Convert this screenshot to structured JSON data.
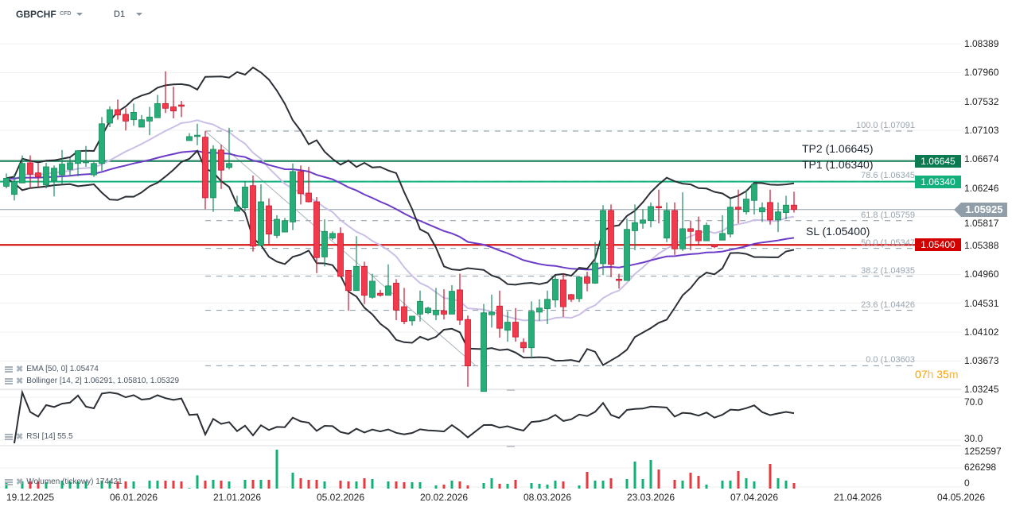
{
  "header": {
    "symbol": "GBPCHF",
    "instrument_type": "CFD",
    "timeframe": "D1"
  },
  "colors": {
    "up": "#26ad78",
    "up_border": "#1a8a5c",
    "down": "#f23a4d",
    "down_border": "#c8182f",
    "tp2": "#0b7a50",
    "tp1": "#12b07c",
    "sl": "#d40000",
    "current": "#8f9ea8",
    "bb_outer": "#2b2f36",
    "bb_mid": "#cbbfe6",
    "ema": "#6c3cc8",
    "fib": "#8a98a3",
    "rsi": "#2b2f36"
  },
  "price_axis": {
    "ticks": [
      "1.08389",
      "1.07960",
      "1.07532",
      "1.07103",
      "1.06674",
      "1.06246",
      "1.05817",
      "1.05388",
      "1.04960",
      "1.04531",
      "1.04102",
      "1.03673",
      "1.03245"
    ]
  },
  "x_axis": {
    "ticks": [
      "19.12.2025",
      "06.01.2026",
      "21.01.2026",
      "05.02.2026",
      "20.02.2026",
      "08.03.2026",
      "23.03.2026",
      "07.04.2026",
      "21.04.2026",
      "04.05.2026"
    ]
  },
  "levels": {
    "tp2": {
      "label": "TP2 (1.06645)",
      "price": 1.06645,
      "badge": "1.06645"
    },
    "tp1": {
      "label": "TP1 (1.06340)",
      "price": 1.0634,
      "badge": "1.06340"
    },
    "sl": {
      "label": "SL (1.05400)",
      "price": 1.054,
      "badge": "1.05400"
    },
    "current": {
      "price": 1.05925,
      "badge": "1.05925"
    }
  },
  "fibonacci": [
    {
      "label": "100.0 (1.07091",
      "price": 1.07091
    },
    {
      "label": "78.6 (1.06345",
      "price": 1.06345
    },
    {
      "label": "61.8 (1.05759",
      "price": 1.05759
    },
    {
      "label": "50.0 (1.05347",
      "price": 1.05347
    },
    {
      "label": "38.2 (1.04935",
      "price": 1.04935
    },
    {
      "label": "23.6 (1.04426",
      "price": 1.04426
    },
    {
      "label": "0.0 (1.03603",
      "price": 1.03603
    }
  ],
  "countdown": {
    "hours": "07",
    "h_unit": "h",
    "minutes": "35",
    "m_unit": "m"
  },
  "indicators": {
    "ema": {
      "label": "EMA [50, 0] 1.05474"
    },
    "bollinger": {
      "label": "Bollinger [14, 2] 1.06291, 1.05810, 1.05329"
    },
    "rsi": {
      "label": "RSI [14] 55.5",
      "ticks": [
        "70.0",
        "30.0"
      ]
    },
    "volume": {
      "label": "Wolumen (tickowy) 174421",
      "ticks": [
        "1252597",
        "626298",
        "0"
      ],
      "max": 1252597
    }
  },
  "chart_data": {
    "type": "candlestick",
    "ohlc": [
      [
        1.0627,
        1.0646,
        1.0624,
        1.0639
      ],
      [
        1.0615,
        1.0645,
        1.0606,
        1.0634
      ],
      [
        1.0632,
        1.0673,
        1.0632,
        1.0661
      ],
      [
        1.0662,
        1.0673,
        1.0624,
        1.0645
      ],
      [
        1.0647,
        1.0661,
        1.0626,
        1.0641
      ],
      [
        1.0629,
        1.0662,
        1.0624,
        1.0656
      ],
      [
        1.0635,
        1.0658,
        1.0612,
        1.0654
      ],
      [
        1.0644,
        1.0681,
        1.063,
        1.066
      ],
      [
        1.0652,
        1.0669,
        1.0642,
        1.0662
      ],
      [
        1.0661,
        1.068,
        1.0642,
        1.068
      ],
      [
        1.0662,
        1.0687,
        1.0656,
        1.0664
      ],
      [
        1.0644,
        1.0663,
        1.0641,
        1.0661
      ],
      [
        1.0661,
        1.073,
        1.065,
        1.072
      ],
      [
        1.0721,
        1.0746,
        1.0715,
        1.0741
      ],
      [
        1.0741,
        1.0756,
        1.0726,
        1.0733
      ],
      [
        1.0734,
        1.0743,
        1.071,
        1.0724
      ],
      [
        1.0726,
        1.075,
        1.0717,
        1.0737
      ],
      [
        1.0715,
        1.0733,
        1.0715,
        1.0726
      ],
      [
        1.0724,
        1.0745,
        1.0703,
        1.073
      ],
      [
        1.0729,
        1.0763,
        1.0729,
        1.075
      ],
      [
        1.075,
        1.0798,
        1.0736,
        1.0743
      ],
      [
        1.0745,
        1.0775,
        1.0728,
        1.0739
      ],
      [
        1.0748,
        1.0754,
        1.073,
        1.0746
      ],
      [
        1.0695,
        1.0706,
        1.0695,
        1.0701
      ],
      [
        1.0701,
        1.072,
        1.0688,
        1.0703
      ],
      [
        1.07,
        1.0709,
        1.0593,
        1.061
      ],
      [
        1.061,
        1.0688,
        1.0589,
        1.0682
      ],
      [
        1.0681,
        1.0689,
        1.0623,
        1.0651
      ],
      [
        1.0655,
        1.0714,
        1.0652,
        1.0661
      ],
      [
        1.059,
        1.0613,
        1.059,
        1.0596
      ],
      [
        1.0595,
        1.0635,
        1.059,
        1.0626
      ],
      [
        1.0628,
        1.0643,
        1.053,
        1.0538
      ],
      [
        1.0539,
        1.063,
        1.0539,
        1.0604
      ],
      [
        1.0598,
        1.0609,
        1.0541,
        1.0556
      ],
      [
        1.0554,
        1.0584,
        1.055,
        1.0578
      ],
      [
        1.0559,
        1.058,
        1.0559,
        1.0576
      ],
      [
        1.0574,
        1.0661,
        1.0562,
        1.0649
      ],
      [
        1.0649,
        1.0658,
        1.06,
        1.0616
      ],
      [
        1.0617,
        1.0656,
        1.0603,
        1.0604
      ],
      [
        1.0604,
        1.0611,
        1.0498,
        1.0521
      ],
      [
        1.0522,
        1.0578,
        1.0508,
        1.056
      ],
      [
        1.055,
        1.056,
        1.0547,
        1.0557
      ],
      [
        1.0557,
        1.0566,
        1.0493,
        1.0493
      ],
      [
        1.0502,
        1.0502,
        1.0442,
        1.0472
      ],
      [
        1.0472,
        1.0553,
        1.0472,
        1.0508
      ],
      [
        1.0508,
        1.0515,
        1.0452,
        1.0465
      ],
      [
        1.0462,
        1.0497,
        1.046,
        1.0486
      ],
      [
        1.0468,
        1.0473,
        1.0463,
        1.0465
      ],
      [
        1.0465,
        1.0511,
        1.0465,
        1.0479
      ],
      [
        1.0483,
        1.0489,
        1.0428,
        1.0443
      ],
      [
        1.0448,
        1.0476,
        1.0422,
        1.0426
      ],
      [
        1.0427,
        1.0434,
        1.042,
        1.0434
      ],
      [
        1.0437,
        1.0472,
        1.0426,
        1.0456
      ],
      [
        1.0439,
        1.0448,
        1.0437,
        1.0446
      ],
      [
        1.0436,
        1.0476,
        1.0428,
        1.0443
      ],
      [
        1.0442,
        1.0474,
        1.0429,
        1.0437
      ],
      [
        1.0437,
        1.048,
        1.0437,
        1.0471
      ],
      [
        1.0473,
        1.0497,
        1.0421,
        1.0428
      ],
      [
        1.0429,
        1.0435,
        1.0329,
        1.036
      ],
      null,
      [
        1.0322,
        1.0452,
        1.0322,
        1.0439
      ],
      [
        1.0436,
        1.0466,
        1.0417,
        1.044
      ],
      [
        1.0449,
        1.0472,
        1.0402,
        1.0416
      ],
      [
        1.0413,
        1.0441,
        1.0396,
        1.0425
      ],
      [
        1.0425,
        1.0446,
        1.0396,
        1.0403
      ],
      [
        1.0395,
        1.0401,
        1.038,
        1.0387
      ],
      [
        1.0387,
        1.0456,
        1.0371,
        1.0441
      ],
      [
        1.044,
        1.0459,
        1.0427,
        1.0446
      ],
      [
        1.0445,
        1.0472,
        1.0422,
        1.0459
      ],
      [
        1.0458,
        1.0494,
        1.0447,
        1.0489
      ],
      [
        1.0488,
        1.0497,
        1.0433,
        1.0448
      ],
      [
        1.0466,
        1.0467,
        1.0455,
        1.0459
      ],
      [
        1.046,
        1.0494,
        1.0455,
        1.0492
      ],
      [
        1.0492,
        1.05,
        1.0471,
        1.0483
      ],
      [
        1.0483,
        1.0544,
        1.0482,
        1.0513
      ],
      [
        1.0512,
        1.0599,
        1.0495,
        1.0591
      ],
      [
        1.0591,
        1.06,
        1.0492,
        1.0511
      ],
      [
        1.0489,
        1.0497,
        1.0475,
        1.0487
      ],
      [
        1.0487,
        1.0579,
        1.0487,
        1.0563
      ],
      [
        1.0561,
        1.06,
        1.0532,
        1.0573
      ],
      [
        1.0572,
        1.0593,
        1.0564,
        1.0577
      ],
      [
        1.0576,
        1.0603,
        1.0566,
        1.0597
      ],
      [
        1.0597,
        1.0622,
        1.0572,
        1.0595
      ],
      [
        1.055,
        1.0603,
        1.0544,
        1.0591
      ],
      [
        1.0591,
        1.0603,
        1.0525,
        1.0534
      ],
      [
        1.0534,
        1.0618,
        1.0531,
        1.0564
      ],
      [
        1.0564,
        1.0576,
        1.0532,
        1.056
      ],
      [
        1.0561,
        1.0582,
        1.0541,
        1.0546
      ],
      [
        1.0546,
        1.0573,
        1.0546,
        1.0569
      ],
      [
        1.054,
        1.0541,
        1.0535,
        1.0537
      ],
      [
        1.0547,
        1.0584,
        1.0547,
        1.0557
      ],
      [
        1.0556,
        1.0608,
        1.0551,
        1.0596
      ],
      [
        1.0596,
        1.0622,
        1.0572,
        1.0593
      ],
      [
        1.0589,
        1.0622,
        1.0585,
        1.0608
      ],
      [
        1.0606,
        1.0632,
        1.0585,
        1.063
      ],
      [
        1.0589,
        1.0603,
        1.0574,
        1.0595
      ],
      [
        1.0603,
        1.0622,
        1.057,
        1.0577
      ],
      [
        1.0577,
        1.0603,
        1.0559,
        1.0589
      ],
      [
        1.0588,
        1.0613,
        1.0578,
        1.0599
      ],
      [
        1.0599,
        1.0619,
        1.0588,
        1.05925
      ]
    ],
    "volume": [
      217000,
      0,
      217000,
      217000,
      217000,
      193000,
      0,
      241000,
      217000,
      217000,
      217000,
      0,
      241000,
      241000,
      217000,
      217000,
      217000,
      0,
      241000,
      241000,
      241000,
      241000,
      217000,
      20000,
      402000,
      241000,
      265000,
      241000,
      217000,
      0,
      265000,
      265000,
      265000,
      265000,
      1180000,
      0,
      482000,
      313000,
      265000,
      265000,
      217000,
      0,
      241000,
      217000,
      217000,
      313000,
      289000,
      0,
      217000,
      217000,
      193000,
      193000,
      193000,
      0,
      96000,
      120000,
      241000,
      217000,
      96000,
      0,
      169000,
      313000,
      145000,
      145000,
      265000,
      0,
      169000,
      145000,
      120000,
      241000,
      217000,
      0,
      96000,
      506000,
      241000,
      241000,
      313000,
      0,
      289000,
      819000,
      289000,
      867000,
      578000,
      0,
      265000,
      241000,
      482000,
      385000,
      120000,
      0,
      241000,
      241000,
      530000,
      313000,
      217000,
      0,
      747000,
      313000,
      241000,
      169000
    ],
    "price_range": [
      1.03245,
      1.08389
    ],
    "rsi_range": [
      30,
      70
    ],
    "grid": true
  }
}
